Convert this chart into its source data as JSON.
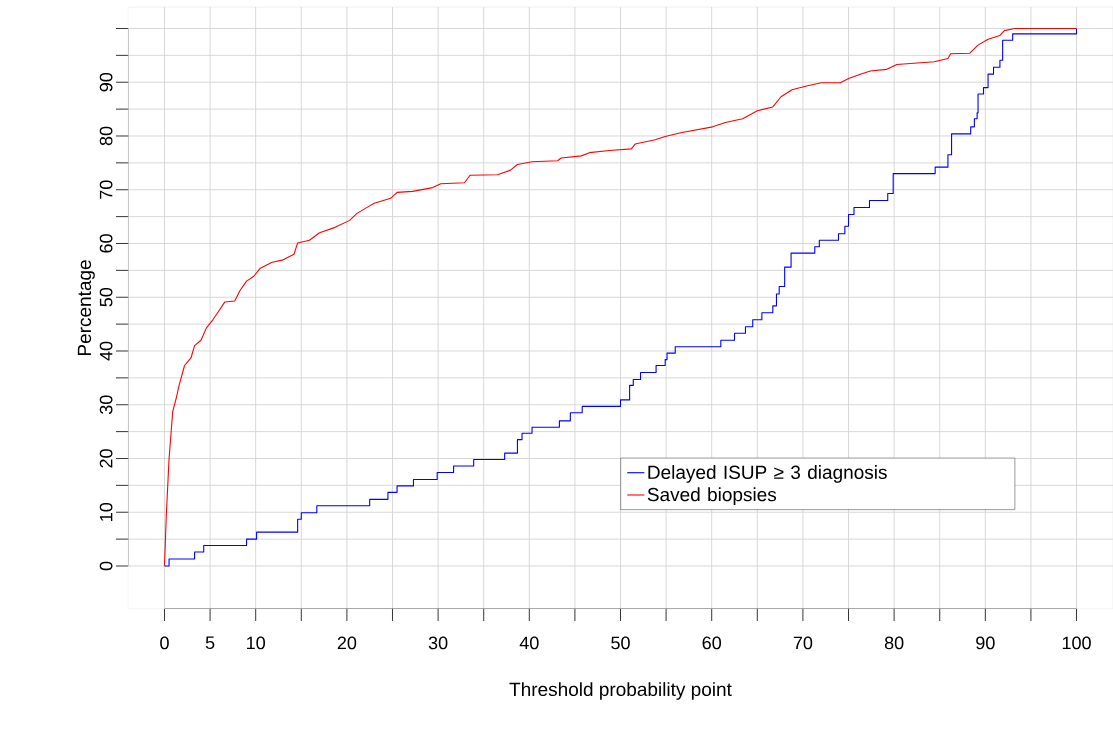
{
  "chart_data": {
    "type": "step",
    "xlabel": "Threshold probability point",
    "ylabel": "Percentage",
    "xlim": [
      -4,
      104
    ],
    "ylim": [
      -8,
      104
    ],
    "xticks": [
      0,
      5,
      10,
      {
        "value": 15,
        "label": null
      },
      20,
      {
        "value": 25,
        "label": null
      },
      30,
      {
        "value": 35,
        "label": null
      },
      40,
      {
        "value": 45,
        "label": null
      },
      50,
      {
        "value": 55,
        "label": null
      },
      60,
      {
        "value": 65,
        "label": null
      },
      70,
      {
        "value": 75,
        "label": null
      },
      80,
      {
        "value": 85,
        "label": null
      },
      90,
      {
        "value": 95,
        "label": null
      },
      100
    ],
    "yticks": [
      0,
      {
        "value": 5,
        "label": null
      },
      10,
      {
        "value": 15,
        "label": null
      },
      20,
      {
        "value": 25,
        "label": null
      },
      30,
      {
        "value": 35,
        "label": null
      },
      40,
      {
        "value": 45,
        "label": null
      },
      50,
      {
        "value": 55,
        "label": null
      },
      60,
      {
        "value": 65,
        "label": null
      },
      70,
      {
        "value": 75,
        "label": null
      },
      80,
      {
        "value": 85,
        "label": null
      },
      90,
      {
        "value": 95,
        "label": null
      },
      {
        "value": 100,
        "label": null
      }
    ],
    "grid": true,
    "legend": "bottom right",
    "series": [
      {
        "name": "Delayed ISUP ≥ 3 diagnosis",
        "color": "#0000ff",
        "x": [
          0,
          0.5,
          3.3,
          4.3,
          9,
          10.1,
          14.6,
          15,
          16.7,
          22.5,
          24.5,
          25.5,
          27.3,
          29.9,
          31.7,
          33.9,
          37.3,
          38.7,
          39.2,
          40.3,
          43.3,
          44.5,
          45.8,
          50,
          51,
          51.4,
          52.2,
          53.9,
          54.9,
          55.1,
          56,
          61,
          62.5,
          63.7,
          64.5,
          65.5,
          66.7,
          67.1,
          67.4,
          68,
          68.7,
          71.3,
          71.8,
          73.9,
          74.6,
          75,
          75.6,
          77.3,
          79.3,
          79.9,
          84.5,
          85.9,
          86.3,
          88.4,
          88.8,
          89.1,
          89.2,
          89.8,
          90.3,
          90.9,
          91.6,
          91.9,
          93,
          100
        ],
        "values": [
          0,
          1.3,
          2.6,
          3.8,
          5,
          6.3,
          8.7,
          9.9,
          11.2,
          12.4,
          13.7,
          14.9,
          16.1,
          17.4,
          18.6,
          19.8,
          21,
          23.5,
          24.7,
          25.8,
          27,
          28.5,
          29.7,
          30.9,
          33.6,
          34.7,
          36,
          37.3,
          38.4,
          39.6,
          40.8,
          42,
          43.3,
          44.5,
          45.8,
          47.1,
          48.4,
          50.6,
          52,
          55.6,
          58.2,
          59.4,
          60.6,
          61.8,
          63.2,
          65.4,
          66.7,
          68,
          69.3,
          73,
          74.2,
          76.5,
          80.4,
          81.7,
          83.2,
          84.3,
          87.8,
          89,
          91.5,
          92.8,
          94.1,
          97.8,
          99,
          100
        ]
      },
      {
        "name": "Saved biopsies",
        "color": "#ff0000",
        "type": "line",
        "x": [
          0,
          0.2,
          0.5,
          0.9,
          1.3,
          1.6,
          2.2,
          2.9,
          3.3,
          4,
          4.6,
          5.3,
          5.9,
          6.6,
          7.7,
          8.3,
          9,
          9.8,
          10.5,
          11.8,
          12.9,
          14.2,
          14.6,
          15.9,
          17,
          18.7,
          20.3,
          21.1,
          22.4,
          23,
          24.8,
          25.5,
          27.2,
          29.4,
          30.3,
          32.9,
          33.5,
          36.5,
          37.9,
          38.7,
          40.3,
          43.1,
          43.5,
          45.7,
          46.6,
          48.8,
          51.2,
          51.6,
          53.8,
          54.9,
          56.6,
          60.1,
          61.5,
          63.4,
          65,
          66.7,
          67.6,
          68.8,
          70.4,
          72,
          74.1,
          75,
          76.3,
          77.4,
          79.2,
          80.3,
          84.4,
          85.9,
          86.2,
          88.3,
          89.2,
          90.3,
          91.6,
          92.1,
          93.2,
          100
        ],
        "values": [
          0,
          9.5,
          19.9,
          28.7,
          31.3,
          33.6,
          37.3,
          38.7,
          41,
          42,
          44.3,
          45.8,
          47.3,
          49.1,
          49.3,
          51.3,
          53,
          53.9,
          55.4,
          56.5,
          56.9,
          58,
          60.1,
          60.6,
          62,
          63,
          64.3,
          65.6,
          66.9,
          67.5,
          68.4,
          69.5,
          69.7,
          70.4,
          71.1,
          71.3,
          72.7,
          72.8,
          73.6,
          74.7,
          75.2,
          75.4,
          75.9,
          76.3,
          76.9,
          77.3,
          77.6,
          78.5,
          79.3,
          79.9,
          80.6,
          81.7,
          82.5,
          83.2,
          84.7,
          85.4,
          87.3,
          88.6,
          89.3,
          89.9,
          89.9,
          90.7,
          91.5,
          92.1,
          92.4,
          93.3,
          93.8,
          94.4,
          95.3,
          95.4,
          96.9,
          98,
          98.7,
          99.6,
          100,
          100
        ]
      }
    ]
  }
}
